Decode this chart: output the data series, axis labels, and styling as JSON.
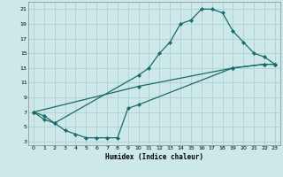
{
  "xlabel": "Humidex (Indice chaleur)",
  "bg_color": "#cce8e8",
  "grid_color": "#b0d0d0",
  "line_color": "#1a6b6b",
  "xlim": [
    -0.5,
    23.5
  ],
  "ylim": [
    2.5,
    22
  ],
  "xticks": [
    0,
    1,
    2,
    3,
    4,
    5,
    6,
    7,
    8,
    9,
    10,
    11,
    12,
    13,
    14,
    15,
    16,
    17,
    18,
    19,
    20,
    21,
    22,
    23
  ],
  "yticks": [
    3,
    5,
    7,
    9,
    11,
    13,
    15,
    17,
    19,
    21
  ],
  "line1_x": [
    0,
    1,
    2,
    10,
    11,
    12,
    13,
    14,
    15,
    16,
    17,
    18,
    19,
    20,
    21,
    22,
    23
  ],
  "line1_y": [
    7,
    6.5,
    5.5,
    12,
    13,
    15,
    16.5,
    19,
    19.5,
    21,
    21,
    20.5,
    18,
    16.5,
    15,
    14.5,
    13.5
  ],
  "line2_x": [
    0,
    10,
    19,
    22,
    23
  ],
  "line2_y": [
    7,
    10.5,
    13.0,
    13.5,
    13.5
  ],
  "line3_x": [
    0,
    1,
    2,
    3,
    4,
    5,
    6,
    7,
    8,
    9,
    10,
    19,
    22,
    23
  ],
  "line3_y": [
    7,
    6.0,
    5.5,
    4.5,
    4.0,
    3.5,
    3.5,
    3.5,
    3.5,
    7.5,
    8.0,
    13.0,
    13.5,
    13.5
  ]
}
